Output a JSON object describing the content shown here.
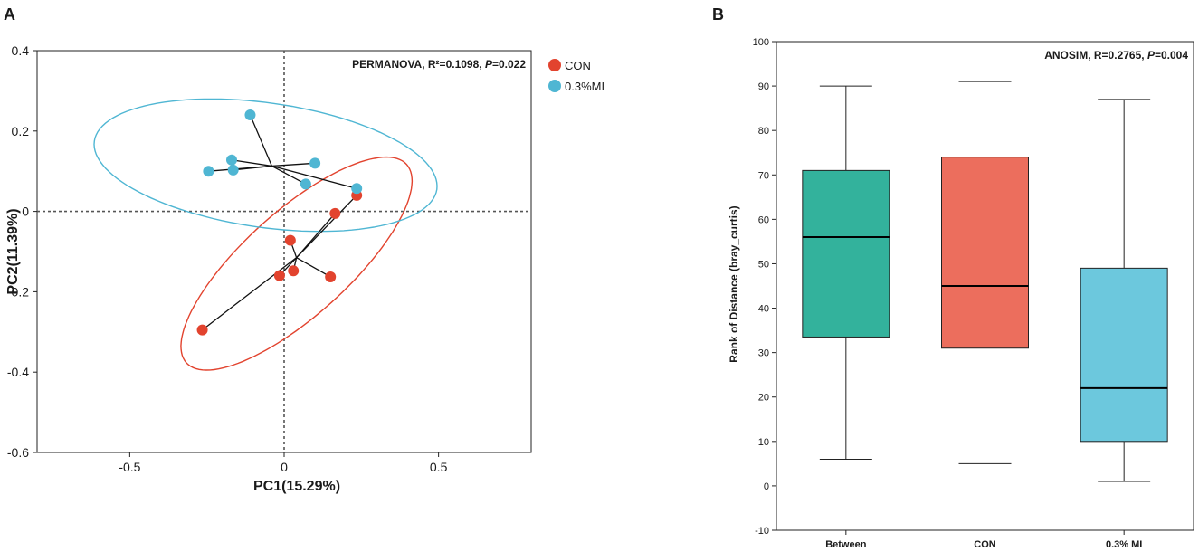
{
  "chart_data": [
    {
      "panel": "A",
      "type": "scatter",
      "subtype": "PCoA",
      "xlabel": "PC1(15.29%)",
      "ylabel": "PC2(11.39%)",
      "xlim": [
        -0.8,
        0.8
      ],
      "ylim": [
        -0.6,
        0.4
      ],
      "xticks": [
        -0.5,
        0,
        0.5
      ],
      "xtick_labels": [
        "-0.5",
        "0",
        "0.5"
      ],
      "yticks": [
        0.4,
        0.2,
        0,
        -0.2,
        -0.4,
        -0.6
      ],
      "ytick_labels": [
        "0.4",
        "0.2",
        "0",
        "-0.2",
        "-0.4",
        "-0.6"
      ],
      "annotation": {
        "prefix": "PERMANOVA, R²=0.1098, ",
        "p_label": "P",
        "p_value": "=0.022"
      },
      "series": [
        {
          "name": "CON",
          "color": "#e2432e",
          "centroid": [
            0.04,
            -0.115
          ],
          "ellipse": {
            "center": [
              0.04,
              -0.13
            ],
            "semi_axes": [
              0.48,
              0.13
            ],
            "angle_deg": 42
          },
          "points": [
            [
              -0.265,
              -0.295
            ],
            [
              -0.015,
              -0.16
            ],
            [
              0.02,
              -0.072
            ],
            [
              0.03,
              -0.148
            ],
            [
              0.15,
              -0.163
            ],
            [
              0.165,
              -0.005
            ],
            [
              0.235,
              0.04
            ]
          ]
        },
        {
          "name": "0.3%MI",
          "color": "#4fb6d3",
          "centroid": [
            -0.04,
            0.113
          ],
          "ellipse": {
            "center": [
              -0.06,
              0.115
            ],
            "semi_axes": [
              0.56,
              0.155
            ],
            "angle_deg": -8
          },
          "points": [
            [
              -0.11,
              0.24
            ],
            [
              -0.17,
              0.128
            ],
            [
              -0.165,
              0.103
            ],
            [
              -0.245,
              0.1
            ],
            [
              0.1,
              0.12
            ],
            [
              0.07,
              0.068
            ],
            [
              0.235,
              0.057
            ]
          ]
        }
      ]
    },
    {
      "panel": "B",
      "type": "box",
      "subtype": "ANOSIM",
      "xlabel": "",
      "ylabel": "Rank of Distance (bray_curtis)",
      "ylim": [
        -10,
        100
      ],
      "yticks": [
        -10,
        0,
        10,
        20,
        30,
        40,
        50,
        60,
        70,
        80,
        90,
        100
      ],
      "categories": [
        "Between",
        "CON",
        "0.3% MI"
      ],
      "annotation": {
        "prefix": "ANOSIM, R=0.2765, ",
        "p_label": "P",
        "p_value": "=0.004"
      },
      "boxes": [
        {
          "name": "Between",
          "color": "#33b29c",
          "whisker_low": 6,
          "q1": 33.5,
          "median": 56,
          "q3": 71,
          "whisker_high": 90
        },
        {
          "name": "CON",
          "color": "#ec6e5d",
          "whisker_low": 5,
          "q1": 31,
          "median": 45,
          "q3": 74,
          "whisker_high": 91
        },
        {
          "name": "0.3% MI",
          "color": "#6cc8dd",
          "whisker_low": 1,
          "q1": 10,
          "median": 22,
          "q3": 49,
          "whisker_high": 87
        }
      ]
    }
  ]
}
